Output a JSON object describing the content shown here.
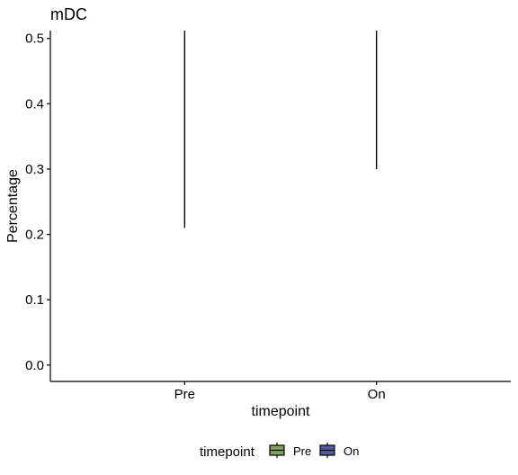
{
  "chart_data": {
    "type": "boxplot",
    "title": "mDC",
    "xlabel": "timepoint",
    "ylabel": "Percentage",
    "categories": [
      "Pre",
      "On"
    ],
    "ylim": [
      -0.025,
      0.512
    ],
    "y_ticks": [
      0.0,
      0.1,
      0.2,
      0.3,
      0.4,
      0.5
    ],
    "y_tick_labels": [
      "0.0",
      "0.1",
      "0.2",
      "0.3",
      "0.4",
      "0.5"
    ],
    "series": [
      {
        "category": "Pre",
        "range": [
          0.21,
          0.512
        ],
        "color": "#7fa35a"
      },
      {
        "category": "On",
        "range": [
          0.3,
          0.512
        ],
        "color": "#545a9e"
      }
    ],
    "grid": false,
    "legend": {
      "title": "timepoint",
      "position": "bottom",
      "entries": [
        {
          "label": "Pre",
          "color": "#7fa35a"
        },
        {
          "label": "On",
          "color": "#545a9e"
        }
      ]
    }
  }
}
